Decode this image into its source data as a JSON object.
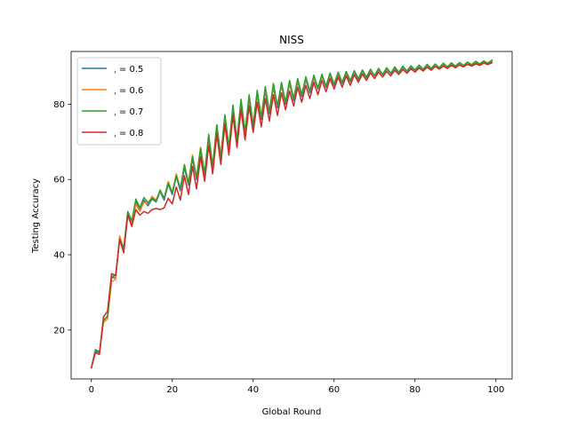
{
  "chart_data": {
    "type": "line",
    "title": "NISS",
    "xlabel": "Global Round",
    "ylabel": "Testing Accuracy",
    "xlim": [
      -5,
      104
    ],
    "ylim": [
      7,
      94
    ],
    "xticks": [
      0,
      20,
      40,
      60,
      80,
      100
    ],
    "yticks": [
      20,
      40,
      60,
      80
    ],
    "grid": false,
    "legend_position": "upper-left",
    "series": [
      {
        "name": "ˌ = 0.5",
        "color": "#1f77b4",
        "values": [
          10.0,
          14.3,
          14.0,
          22.5,
          23.7,
          34.0,
          33.8,
          44.5,
          41.0,
          51.0,
          48.5,
          54.2,
          52.0,
          54.5,
          53.0,
          54.8,
          54.0,
          56.8,
          54.5,
          58.8,
          56.0,
          60.8,
          57.0,
          63.2,
          58.5,
          65.5,
          60.0,
          67.8,
          61.0,
          71.0,
          63.0,
          73.5,
          65.5,
          76.0,
          68.0,
          78.5,
          70.0,
          80.2,
          72.0,
          81.5,
          74.0,
          82.5,
          76.0,
          83.5,
          77.5,
          84.5,
          79.0,
          85.0,
          80.0,
          85.5,
          81.0,
          86.0,
          82.0,
          86.5,
          83.0,
          87.0,
          84.0,
          87.5,
          84.5,
          87.8,
          85.0,
          88.0,
          85.5,
          88.2,
          86.0,
          88.5,
          86.5,
          88.7,
          87.0,
          88.9,
          87.5,
          89.1,
          87.8,
          89.3,
          88.1,
          89.5,
          88.4,
          89.7,
          88.7,
          89.8,
          89.0,
          90.0,
          89.2,
          90.2,
          89.4,
          90.4,
          89.6,
          90.5,
          89.8,
          90.6,
          90.0,
          90.8,
          90.2,
          90.9,
          90.4,
          91.0,
          90.6,
          91.1,
          90.8,
          91.3
        ]
      },
      {
        "name": "ˌ = 0.6",
        "color": "#ff7f0e",
        "values": [
          10.0,
          14.0,
          13.8,
          22.0,
          23.0,
          32.8,
          33.5,
          45.0,
          41.5,
          50.5,
          48.0,
          53.5,
          51.5,
          54.0,
          53.5,
          55.5,
          54.5,
          57.0,
          55.0,
          59.5,
          56.5,
          61.5,
          57.5,
          64.0,
          59.0,
          66.5,
          60.5,
          68.5,
          61.5,
          71.5,
          63.5,
          74.5,
          66.0,
          77.0,
          68.5,
          79.5,
          70.5,
          81.0,
          72.5,
          82.0,
          74.5,
          83.0,
          76.5,
          84.0,
          78.0,
          84.8,
          79.5,
          85.3,
          80.5,
          85.8,
          81.5,
          86.3,
          82.5,
          86.8,
          83.5,
          87.2,
          84.3,
          87.7,
          84.8,
          88.0,
          85.3,
          88.2,
          85.8,
          88.4,
          86.3,
          88.7,
          86.8,
          88.9,
          87.2,
          89.1,
          87.6,
          89.3,
          87.9,
          89.5,
          88.2,
          89.7,
          88.5,
          89.9,
          88.8,
          90.0,
          89.1,
          90.2,
          89.3,
          90.4,
          89.5,
          90.5,
          89.7,
          90.7,
          89.9,
          90.8,
          90.1,
          90.9,
          90.3,
          91.0,
          90.5,
          91.2,
          90.7,
          91.3,
          90.9,
          91.5
        ]
      },
      {
        "name": "ˌ = 0.7",
        "color": "#2ca02c",
        "values": [
          10.0,
          14.8,
          14.2,
          22.8,
          23.5,
          34.2,
          34.5,
          44.2,
          41.8,
          51.5,
          49.0,
          54.8,
          52.5,
          55.2,
          53.8,
          55.0,
          54.3,
          57.2,
          55.0,
          59.0,
          56.5,
          61.0,
          57.5,
          63.8,
          59.0,
          66.0,
          60.5,
          68.3,
          61.5,
          72.0,
          63.5,
          74.5,
          66.0,
          77.2,
          68.5,
          79.8,
          70.5,
          81.3,
          72.5,
          82.5,
          74.5,
          83.7,
          76.5,
          84.7,
          78.0,
          85.5,
          79.5,
          85.8,
          80.5,
          86.3,
          81.5,
          86.8,
          82.5,
          87.3,
          83.5,
          87.7,
          84.3,
          88.0,
          84.8,
          88.3,
          85.3,
          88.5,
          85.8,
          88.7,
          86.3,
          88.9,
          86.8,
          89.1,
          87.2,
          89.3,
          87.6,
          89.5,
          87.9,
          89.7,
          88.2,
          89.9,
          88.5,
          90.1,
          88.8,
          90.2,
          89.1,
          90.4,
          89.3,
          90.6,
          89.5,
          90.7,
          89.7,
          90.9,
          89.9,
          91.0,
          90.1,
          91.1,
          90.3,
          91.2,
          90.5,
          91.4,
          90.7,
          91.5,
          90.9,
          91.7
        ]
      },
      {
        "name": "ˌ = 0.8",
        "color": "#d62728",
        "values": [
          10.0,
          14.0,
          13.5,
          23.5,
          25.0,
          35.0,
          34.5,
          44.0,
          40.5,
          50.5,
          47.5,
          52.0,
          50.5,
          51.5,
          51.0,
          52.0,
          52.3,
          52.0,
          52.5,
          55.0,
          53.5,
          58.0,
          54.5,
          61.0,
          56.0,
          63.5,
          57.5,
          66.0,
          59.5,
          69.0,
          61.5,
          72.0,
          64.0,
          74.5,
          66.5,
          77.0,
          68.5,
          78.5,
          70.5,
          79.5,
          72.5,
          80.5,
          74.0,
          81.5,
          75.5,
          82.5,
          77.0,
          83.0,
          78.5,
          83.5,
          79.5,
          84.5,
          80.5,
          85.0,
          81.5,
          85.8,
          82.5,
          86.3,
          83.3,
          86.8,
          84.0,
          87.2,
          84.5,
          87.5,
          85.0,
          87.8,
          85.8,
          88.0,
          86.3,
          88.3,
          86.8,
          88.5,
          87.2,
          88.7,
          87.5,
          89.0,
          87.9,
          89.2,
          88.2,
          89.4,
          88.5,
          89.6,
          88.8,
          89.8,
          89.0,
          90.0,
          89.3,
          90.1,
          89.5,
          90.3,
          89.7,
          90.4,
          89.9,
          90.6,
          90.1,
          90.7,
          90.3,
          90.9,
          90.5,
          91.0
        ]
      }
    ]
  }
}
